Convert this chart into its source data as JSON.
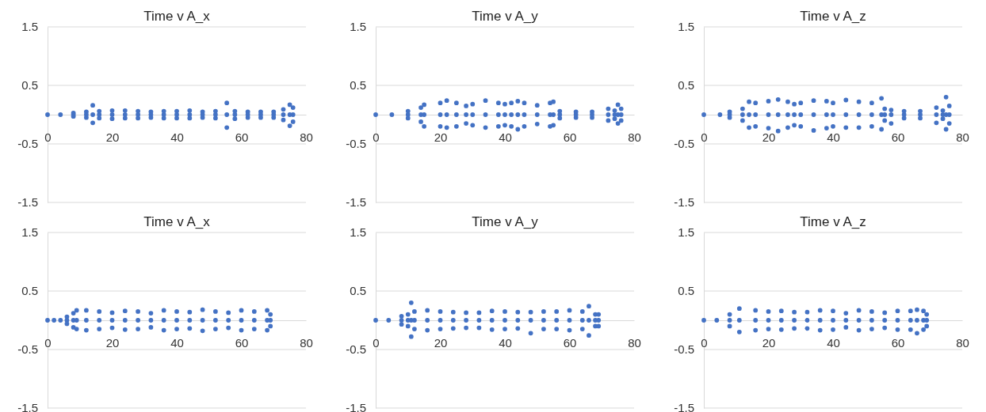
{
  "chart_data": [
    {
      "type": "scatter",
      "title": "Time v A_x",
      "xlim": [
        0,
        80
      ],
      "xticks": [
        0,
        20,
        40,
        60,
        80
      ],
      "ylim": [
        -1.5,
        1.5
      ],
      "yticks": [
        -1.5,
        -0.5,
        0.5,
        1.5
      ],
      "grid": "y",
      "marker": "circle",
      "series": [
        {
          "color": "#4472c4",
          "x": [
            0,
            4,
            8,
            8,
            8,
            12,
            12,
            12,
            14,
            14,
            14,
            16,
            16,
            16,
            20,
            20,
            20,
            24,
            24,
            24,
            28,
            28,
            28,
            32,
            32,
            32,
            36,
            36,
            36,
            40,
            40,
            40,
            44,
            44,
            44,
            48,
            48,
            48,
            52,
            52,
            52,
            55.5,
            55.5,
            55.5,
            58,
            58,
            58,
            62,
            62,
            62,
            66,
            66,
            66,
            70,
            70,
            70,
            73,
            73,
            73,
            75,
            75,
            75,
            76,
            76,
            76
          ],
          "values": [
            0,
            0,
            0.03,
            0,
            -0.03,
            0.05,
            0,
            -0.05,
            0.16,
            0,
            -0.14,
            0.06,
            0,
            -0.06,
            0.07,
            0,
            -0.07,
            0.07,
            0,
            -0.06,
            0.06,
            0,
            -0.06,
            0.05,
            0,
            -0.05,
            0.06,
            0,
            -0.06,
            0.06,
            0,
            -0.06,
            0.07,
            0,
            -0.06,
            0.05,
            0,
            -0.05,
            0.06,
            0,
            -0.06,
            0.2,
            0,
            -0.22,
            0.06,
            0,
            -0.07,
            0.05,
            0,
            -0.05,
            0.05,
            0,
            -0.05,
            0.05,
            0,
            -0.05,
            0.09,
            0,
            -0.09,
            0.17,
            0,
            -0.19,
            0.12,
            0,
            -0.12
          ]
        }
      ]
    },
    {
      "type": "scatter",
      "title": "Time v A_y",
      "xlim": [
        0,
        80
      ],
      "xticks": [
        0,
        20,
        40,
        60,
        80
      ],
      "ylim": [
        -1.5,
        1.5
      ],
      "yticks": [
        -1.5,
        -0.5,
        0.5,
        1.5
      ],
      "grid": "y",
      "marker": "circle",
      "series": [
        {
          "color": "#4472c4",
          "x": [
            0,
            5,
            10,
            10,
            10,
            14,
            14,
            14,
            15,
            15,
            15,
            20,
            20,
            20,
            22,
            22,
            22,
            25,
            25,
            25,
            28,
            28,
            28,
            30,
            30,
            30,
            34,
            34,
            34,
            38,
            38,
            38,
            40,
            40,
            40,
            42,
            42,
            42,
            44,
            44,
            44,
            46,
            46,
            46,
            50,
            50,
            50,
            54,
            54,
            54,
            55,
            55,
            55,
            57,
            57,
            57,
            62,
            62,
            62,
            67,
            67,
            67,
            72,
            72,
            72,
            74,
            74,
            74,
            75,
            75,
            75,
            76,
            76,
            76
          ],
          "values": [
            0,
            0,
            0.06,
            0,
            -0.06,
            0.12,
            0,
            -0.12,
            0.17,
            0,
            -0.2,
            0.2,
            0,
            -0.2,
            0.24,
            0,
            -0.22,
            0.2,
            0,
            -0.2,
            0.15,
            0,
            -0.15,
            0.18,
            0,
            -0.18,
            0.24,
            0,
            -0.22,
            0.2,
            0,
            -0.2,
            0.18,
            0,
            -0.18,
            0.2,
            0,
            -0.2,
            0.23,
            0,
            -0.25,
            0.2,
            0,
            -0.2,
            0.16,
            0,
            -0.16,
            0.2,
            0,
            -0.2,
            0.22,
            0,
            -0.18,
            0.06,
            0,
            -0.06,
            0.05,
            0,
            -0.05,
            0.05,
            0,
            -0.05,
            0.1,
            0,
            -0.1,
            0.07,
            0,
            -0.07,
            0.17,
            0,
            -0.15,
            0.1,
            0,
            -0.1
          ]
        }
      ]
    },
    {
      "type": "scatter",
      "title": "Time v A_z",
      "xlim": [
        0,
        80
      ],
      "xticks": [
        0,
        20,
        40,
        60,
        80
      ],
      "ylim": [
        -1.5,
        1.5
      ],
      "yticks": [
        -1.5,
        -0.5,
        0.5,
        1.5
      ],
      "grid": "y",
      "marker": "circle",
      "series": [
        {
          "color": "#4472c4",
          "x": [
            0,
            5,
            8,
            8,
            8,
            12,
            12,
            12,
            14,
            14,
            14,
            16,
            16,
            16,
            20,
            20,
            20,
            23,
            23,
            23,
            26,
            26,
            26,
            28,
            28,
            28,
            30,
            30,
            30,
            34,
            34,
            34,
            38,
            38,
            38,
            40,
            40,
            40,
            44,
            44,
            44,
            48,
            48,
            48,
            52,
            52,
            52,
            55,
            55,
            55,
            56,
            56,
            56,
            58,
            58,
            58,
            62,
            62,
            62,
            67,
            67,
            67,
            72,
            72,
            72,
            74,
            74,
            74,
            75,
            75,
            75,
            76,
            76,
            76
          ],
          "values": [
            0,
            0,
            0.05,
            0,
            -0.05,
            0.1,
            0,
            -0.1,
            0.22,
            0,
            -0.22,
            0.2,
            0,
            -0.2,
            0.23,
            0,
            -0.23,
            0.26,
            0,
            -0.28,
            0.22,
            0,
            -0.22,
            0.18,
            0,
            -0.18,
            0.2,
            0,
            -0.2,
            0.24,
            0,
            -0.27,
            0.23,
            0,
            -0.23,
            0.2,
            0,
            -0.2,
            0.25,
            0,
            -0.22,
            0.22,
            0,
            -0.22,
            0.2,
            0,
            -0.2,
            0.28,
            0,
            -0.25,
            0.1,
            0,
            -0.1,
            0.08,
            0,
            -0.15,
            0.06,
            0,
            -0.06,
            0.06,
            0,
            -0.06,
            0.12,
            0,
            -0.14,
            0.07,
            0,
            -0.07,
            0.3,
            0,
            -0.25,
            0.15,
            0,
            -0.15
          ]
        }
      ]
    },
    {
      "type": "scatter",
      "title": "Time v A_x",
      "xlim": [
        0,
        80
      ],
      "xticks": [
        0,
        20,
        40,
        60,
        80
      ],
      "ylim": [
        -1.5,
        1.5
      ],
      "yticks": [
        -1.5,
        -0.5,
        0.5,
        1.5
      ],
      "grid": "y",
      "marker": "circle",
      "series": [
        {
          "color": "#4472c4",
          "x": [
            0,
            2,
            4,
            6,
            6,
            6,
            8,
            8,
            8,
            9,
            9,
            9,
            12,
            12,
            12,
            16,
            16,
            16,
            20,
            20,
            20,
            24,
            24,
            24,
            28,
            28,
            28,
            32,
            32,
            32,
            36,
            36,
            36,
            40,
            40,
            40,
            44,
            44,
            44,
            48,
            48,
            48,
            52,
            52,
            52,
            56,
            56,
            56,
            60,
            60,
            60,
            64,
            64,
            64,
            68,
            68,
            68,
            69,
            69,
            69
          ],
          "values": [
            0,
            0,
            0,
            0.06,
            0,
            -0.06,
            0.12,
            0,
            -0.12,
            0.17,
            0,
            -0.15,
            0.17,
            0,
            -0.17,
            0.15,
            0,
            -0.15,
            0.13,
            0,
            -0.13,
            0.16,
            0,
            -0.16,
            0.15,
            0,
            -0.15,
            0.12,
            0,
            -0.12,
            0.17,
            0,
            -0.17,
            0.15,
            0,
            -0.15,
            0.14,
            0,
            -0.14,
            0.18,
            0,
            -0.18,
            0.15,
            0,
            -0.15,
            0.13,
            0,
            -0.13,
            0.17,
            0,
            -0.17,
            0.15,
            0,
            -0.15,
            0.17,
            0,
            -0.17,
            0.1,
            0,
            -0.1
          ]
        }
      ]
    },
    {
      "type": "scatter",
      "title": "Time v A_y",
      "xlim": [
        0,
        80
      ],
      "xticks": [
        0,
        20,
        40,
        60,
        80
      ],
      "ylim": [
        -1.5,
        1.5
      ],
      "yticks": [
        -1.5,
        -0.5,
        0.5,
        1.5
      ],
      "grid": "y",
      "marker": "circle",
      "series": [
        {
          "color": "#4472c4",
          "x": [
            0,
            4,
            8,
            8,
            8,
            10,
            10,
            10,
            11,
            11,
            11,
            12,
            12,
            12,
            16,
            16,
            16,
            20,
            20,
            20,
            24,
            24,
            24,
            28,
            28,
            28,
            32,
            32,
            32,
            36,
            36,
            36,
            40,
            40,
            40,
            44,
            44,
            44,
            48,
            48,
            48,
            52,
            52,
            52,
            56,
            56,
            56,
            60,
            60,
            60,
            64,
            64,
            64,
            66,
            66,
            66,
            68,
            68,
            68,
            69,
            69,
            69
          ],
          "values": [
            0,
            0,
            0.07,
            0,
            -0.07,
            0.1,
            0,
            -0.1,
            0.3,
            0,
            -0.28,
            0.15,
            0,
            -0.15,
            0.17,
            0,
            -0.17,
            0.15,
            0,
            -0.15,
            0.14,
            0,
            -0.14,
            0.13,
            0,
            -0.13,
            0.13,
            0,
            -0.13,
            0.16,
            0,
            -0.16,
            0.15,
            0,
            -0.15,
            0.14,
            0,
            -0.14,
            0.14,
            0,
            -0.22,
            0.15,
            0,
            -0.15,
            0.15,
            0,
            -0.15,
            0.17,
            0,
            -0.17,
            0.15,
            0,
            -0.15,
            0.24,
            0,
            -0.26,
            0.1,
            0,
            -0.1,
            0.1,
            0,
            -0.1
          ]
        }
      ]
    },
    {
      "type": "scatter",
      "title": "Time v A_z",
      "xlim": [
        0,
        80
      ],
      "xticks": [
        0,
        20,
        40,
        60,
        80
      ],
      "ylim": [
        -1.5,
        1.5
      ],
      "yticks": [
        -1.5,
        -0.5,
        0.5,
        1.5
      ],
      "grid": "y",
      "marker": "circle",
      "series": [
        {
          "color": "#4472c4",
          "x": [
            0,
            4,
            8,
            8,
            8,
            11,
            11,
            11,
            16,
            16,
            16,
            20,
            20,
            20,
            24,
            24,
            24,
            28,
            28,
            28,
            32,
            32,
            32,
            36,
            36,
            36,
            40,
            40,
            40,
            44,
            44,
            44,
            48,
            48,
            48,
            52,
            52,
            52,
            56,
            56,
            56,
            60,
            60,
            60,
            64,
            64,
            64,
            66,
            66,
            66,
            68,
            68,
            68,
            69,
            69,
            69
          ],
          "values": [
            0,
            0,
            0.1,
            0,
            -0.1,
            0.2,
            0,
            -0.2,
            0.17,
            0,
            -0.17,
            0.15,
            0,
            -0.15,
            0.16,
            0,
            -0.16,
            0.14,
            0,
            -0.14,
            0.14,
            0,
            -0.14,
            0.17,
            0,
            -0.17,
            0.16,
            0,
            -0.16,
            0.12,
            0,
            -0.12,
            0.17,
            0,
            -0.17,
            0.15,
            0,
            -0.15,
            0.13,
            0,
            -0.13,
            0.16,
            0,
            -0.16,
            0.16,
            0,
            -0.16,
            0.18,
            0,
            -0.22,
            0.16,
            0,
            -0.16,
            0.1,
            0,
            -0.1
          ]
        }
      ]
    }
  ]
}
